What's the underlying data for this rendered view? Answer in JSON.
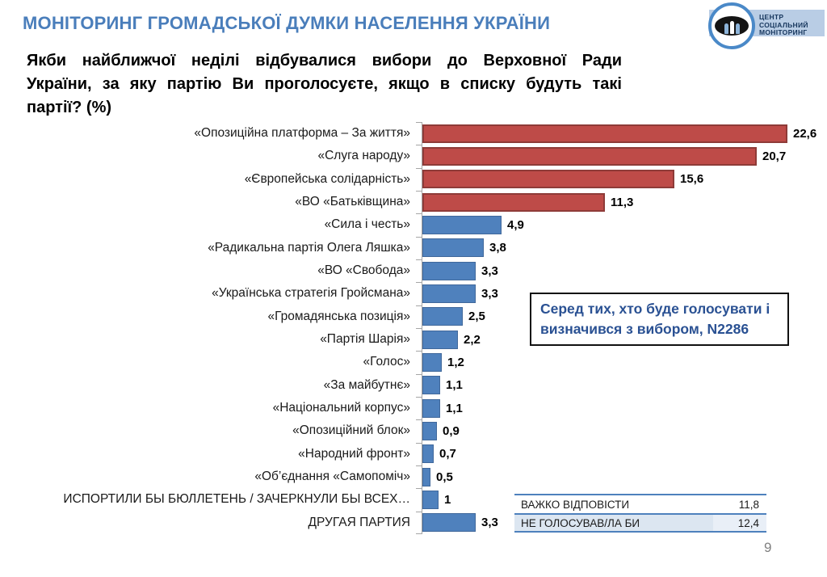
{
  "header": {
    "title": "МОНІТОРИНГ ГРОМАДСЬКОЇ ДУМКИ НАСЕЛЕННЯ УКРАЇНИ",
    "logo": {
      "line1": "ЦЕНТР",
      "line2": "СОЦІАЛЬНИЙ",
      "line3": "МОНІТОРИНГ"
    }
  },
  "question": {
    "full_text": "Якби найближчої неділі відбувалися вибори до Верховної Ради України, за яку партію Ви проголосуєте, якщо в списку будуть такі партії? (%)",
    "lines": [
      "Якби найближчої неділі відбувалися вибори до Верховної Ради",
      "України, за яку партію Ви проголосуєте, якщо в списку будуть такі",
      "партії? (%)"
    ]
  },
  "chart_data": {
    "type": "bar",
    "orientation": "horizontal",
    "title": "Якби найближчої неділі відбувалися вибори до Верховної Ради України, за яку партію Ви проголосуєте, якщо в списку будуть такі партії? (%)",
    "categories": [
      "«Опозиційна платформа – За життя»",
      "«Слуга народу»",
      "«Європейська солідарність»",
      "«ВО «Батьківщина»",
      "«Сила і честь»",
      "«Радикальна партія Олега Ляшка»",
      "«ВО  «Свобода»",
      "«Українська стратегія Гройсмана»",
      "«Громадянська позиція»",
      "«Партія Шарія»",
      "«Голос»",
      "«За майбутнє»",
      "«Національний корпус»",
      "«Опозиційний блок»",
      "«Народний фронт»",
      "«Об’єднання «Самопоміч»",
      "ИСПОРТИЛИ БЫ БЮЛЛЕТЕНЬ / ЗАЧЕРКНУЛИ БЫ ВСЕХ…",
      "ДРУГАЯ ПАРТИЯ"
    ],
    "values": [
      22.6,
      20.7,
      15.6,
      11.3,
      4.9,
      3.8,
      3.3,
      3.3,
      2.5,
      2.2,
      1.2,
      1.1,
      1.1,
      0.9,
      0.7,
      0.5,
      1,
      3.3
    ],
    "value_labels": [
      "22,6",
      "20,7",
      "15,6",
      "11,3",
      "4,9",
      "3,8",
      "3,3",
      "3,3",
      "2,5",
      "2,2",
      "1,2",
      "1,1",
      "1,1",
      "0,9",
      "0,7",
      "0,5",
      "1",
      "3,3"
    ],
    "bar_colors": [
      "red",
      "red",
      "red",
      "red",
      "blue",
      "blue",
      "blue",
      "blue",
      "blue",
      "blue",
      "blue",
      "blue",
      "blue",
      "blue",
      "blue",
      "blue",
      "blue",
      "blue"
    ],
    "xlim": [
      0,
      23.5
    ],
    "grid": false,
    "legend": false,
    "annotation": "Серед тих, хто буде голосувати і визначився з вибором, N2286"
  },
  "note_box": {
    "line1": "Серед тих, хто буде голосувати і",
    "line2": "визначився з вибором, N2286"
  },
  "summary_table": {
    "rows": [
      {
        "label": "ВАЖКО ВІДПОВІСТИ",
        "value": "11,8"
      },
      {
        "label": "НЕ ГОЛОСУВАВ/ЛА БИ",
        "value": "12,4"
      }
    ]
  },
  "page_number": "9",
  "colors": {
    "title_blue": "#4A7EBB",
    "bar_red": "#BE4B48",
    "bar_red_border": "#8E3B38",
    "bar_blue": "#4F81BD",
    "bar_blue_border": "#40689B",
    "note_text_blue": "#2A5193",
    "table_border_blue": "#4E81BD",
    "table_row_alt_bg": "#DCE6F1",
    "logo_banner_bg": "#B9CDE5",
    "logo_text_navy": "#17375E",
    "axis_gray": "#A6A6A6"
  }
}
